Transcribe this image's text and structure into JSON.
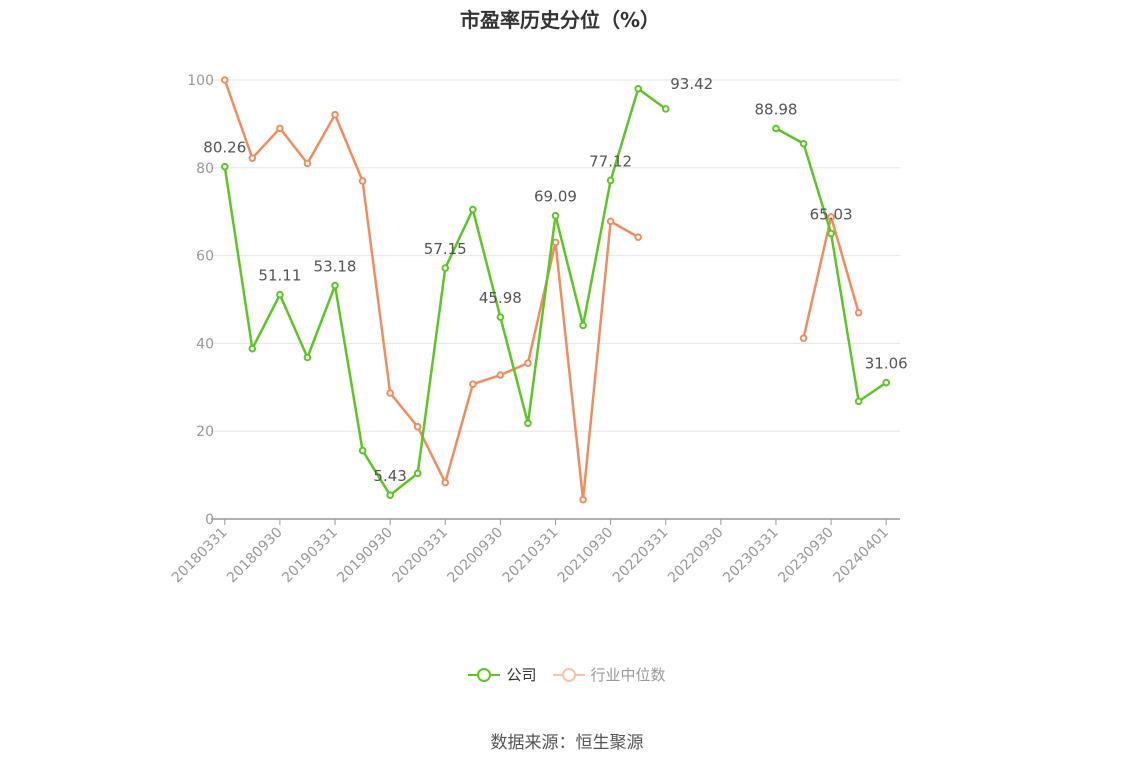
{
  "chart_data": {
    "type": "line",
    "title": "市盈率历史分位（%）",
    "categories": [
      "20180331",
      "20180630",
      "20180930",
      "20181231",
      "20190331",
      "20190630",
      "20190930",
      "20191231",
      "20200331",
      "20200630",
      "20200930",
      "20201231",
      "20210331",
      "20210630",
      "20210930",
      "20211231",
      "20220331",
      "20220630",
      "20220930",
      "20221231",
      "20230331",
      "20230630",
      "20230930",
      "20231231",
      "20240401"
    ],
    "x_tick_labels": [
      "20180331",
      "20180930",
      "20190331",
      "20190930",
      "20200331",
      "20200930",
      "20210331",
      "20210930",
      "20220331",
      "20220930",
      "20230331",
      "20230930",
      "20240401"
    ],
    "y_ticks": [
      0,
      20,
      40,
      60,
      80,
      100
    ],
    "ylim": [
      0,
      100
    ],
    "grid": true,
    "legend_position": "bottom",
    "series": [
      {
        "name": "公司",
        "color": "#5cc624",
        "values": [
          80.26,
          38.8,
          51.11,
          36.8,
          53.18,
          15.6,
          5.43,
          10.4,
          57.15,
          70.5,
          45.98,
          21.8,
          69.09,
          44.1,
          77.12,
          98.0,
          93.42,
          null,
          null,
          null,
          88.98,
          85.5,
          65.03,
          26.8,
          31.06
        ],
        "labels": [
          "80.26",
          null,
          "51.11",
          null,
          "53.18",
          null,
          "5.43",
          null,
          "57.15",
          null,
          "45.98",
          null,
          "69.09",
          null,
          "77.12",
          null,
          "93.42",
          null,
          null,
          null,
          "88.98",
          null,
          "65.03",
          null,
          "31.06"
        ]
      },
      {
        "name": "行业中位数",
        "color": "#f28c5c",
        "values": [
          100.0,
          82.2,
          89.0,
          81.0,
          92.1,
          77.0,
          28.7,
          21.0,
          8.3,
          30.7,
          32.8,
          35.5,
          63.0,
          4.4,
          67.8,
          64.2,
          null,
          null,
          null,
          null,
          null,
          41.2,
          68.8,
          47.0,
          null
        ]
      }
    ]
  },
  "source": "数据来源：恒生聚源"
}
